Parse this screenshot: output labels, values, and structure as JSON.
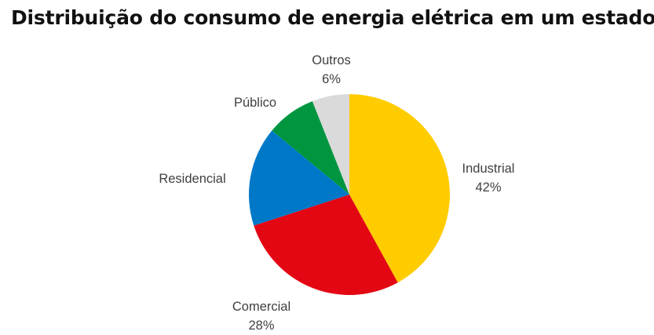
{
  "chart_data": {
    "type": "pie",
    "title": "Distribuição do consumo de energia elétrica em um estado",
    "slices": [
      {
        "label": "Industrial",
        "value": 42,
        "value_label": "42%",
        "color": "#FFCC00"
      },
      {
        "label": "Comercial",
        "value": 28,
        "value_label": "28%",
        "color": "#E30613"
      },
      {
        "label": "Residencial",
        "value": 16,
        "value_label": "",
        "color": "#0078C8"
      },
      {
        "label": "Público",
        "value": 8,
        "value_label": "",
        "color": "#009640"
      },
      {
        "label": "Outros",
        "value": 6,
        "value_label": "6%",
        "color": "#DADADA"
      }
    ]
  }
}
